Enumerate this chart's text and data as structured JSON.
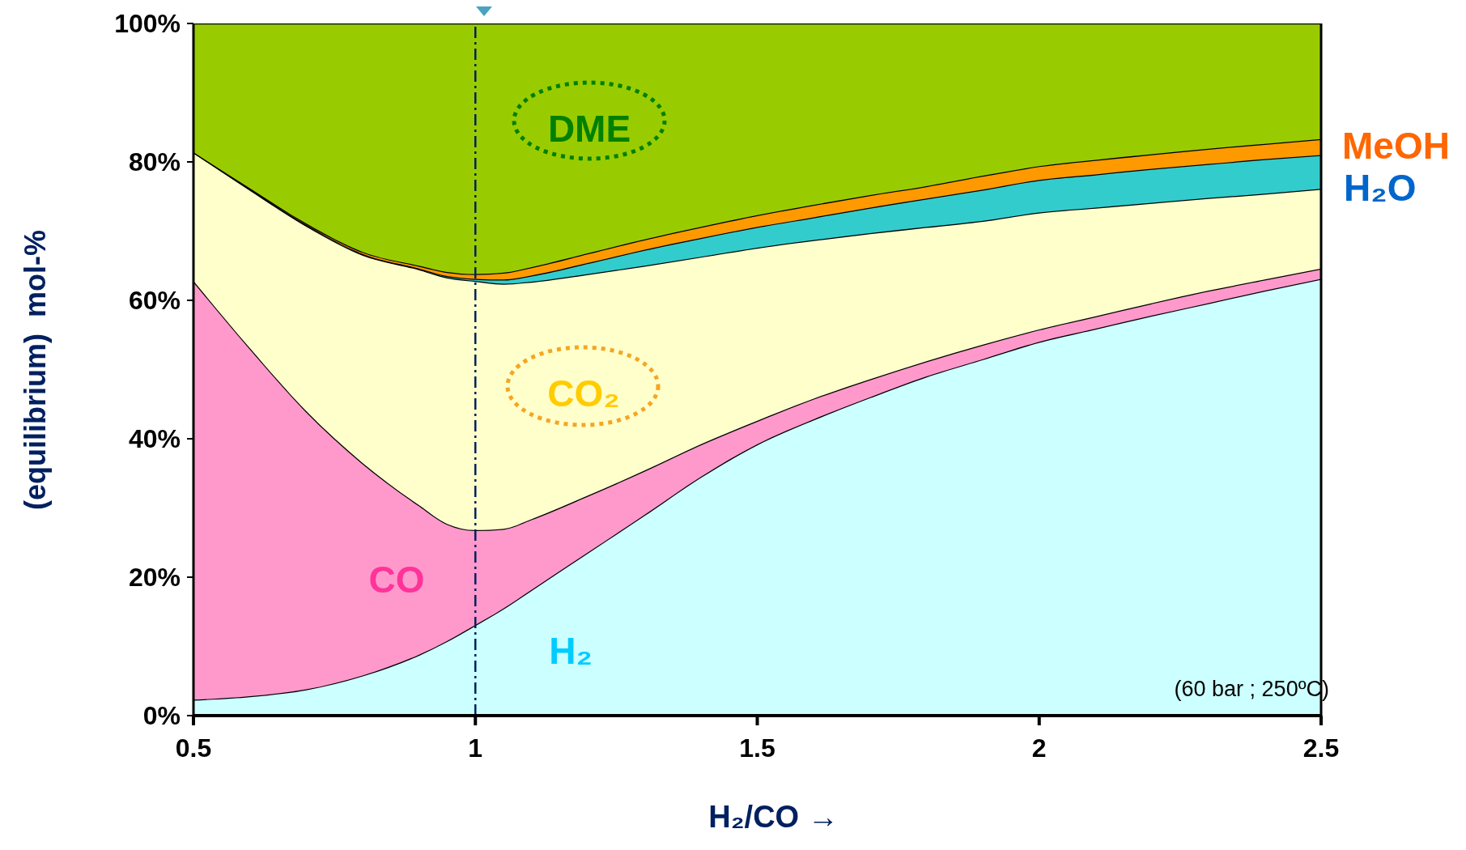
{
  "chart_data": {
    "type": "area",
    "stacked": true,
    "xlabel": "H₂/CO →",
    "ylabel": "(equilibrium)  mol-%",
    "x": [
      0.5,
      0.6,
      0.7,
      0.8,
      0.9,
      0.95,
      1.0,
      1.05,
      1.1,
      1.2,
      1.3,
      1.4,
      1.5,
      1.6,
      1.7,
      1.8,
      1.9,
      2.0,
      2.1,
      2.2,
      2.3,
      2.4,
      2.5
    ],
    "series": [
      {
        "name": "H₂",
        "color": "#ccffff",
        "values": [
          2.3,
          2.8,
          3.8,
          5.8,
          8.8,
          10.8,
          13.1,
          15.5,
          18.2,
          23.6,
          29.0,
          34.5,
          39.2,
          42.8,
          46.0,
          49.0,
          51.5,
          54.0,
          55.9,
          57.8,
          59.6,
          61.4,
          63.1
        ]
      },
      {
        "name": "CO",
        "color": "#ff99cc",
        "values": [
          60.5,
          50.3,
          40.2,
          30.7,
          21.6,
          16.9,
          13.7,
          11.5,
          10.2,
          8.2,
          6.4,
          4.7,
          3.4,
          3.0,
          2.6,
          2.2,
          2.1,
          1.8,
          1.8,
          1.8,
          1.8,
          1.6,
          1.5
        ]
      },
      {
        "name": "CO₂",
        "color": "#ffffcc",
        "values": [
          18.6,
          22.9,
          26.8,
          30.1,
          34.1,
          35.6,
          36.0,
          35.4,
          34.3,
          32.0,
          29.6,
          27.1,
          25.0,
          22.9,
          21.1,
          19.4,
          17.9,
          16.9,
          15.7,
          14.5,
          13.4,
          12.4,
          11.5
        ]
      },
      {
        "name": "H₂O",
        "color": "#33cccc",
        "values": [
          0,
          0.1,
          0.1,
          0.1,
          0.1,
          0.2,
          0.3,
          0.6,
          0.9,
          1.6,
          2.3,
          2.7,
          3.0,
          3.3,
          3.7,
          4.1,
          4.5,
          4.7,
          4.8,
          4.9,
          4.9,
          5.0,
          4.9
        ]
      },
      {
        "name": "MeOH",
        "color": "#ff9900",
        "values": [
          0,
          0.1,
          0.2,
          0.3,
          0.4,
          0.6,
          0.7,
          1.0,
          1.2,
          1.4,
          1.5,
          1.6,
          1.7,
          1.8,
          1.8,
          1.8,
          2.0,
          2.0,
          2.1,
          2.1,
          2.2,
          2.2,
          2.3
        ]
      },
      {
        "name": "DME",
        "color": "#99cc00",
        "values": [
          18.6,
          23.8,
          28.9,
          33.0,
          35.0,
          35.9,
          36.2,
          36.0,
          35.2,
          33.2,
          31.2,
          29.4,
          27.7,
          26.2,
          24.8,
          23.5,
          22.0,
          20.6,
          19.7,
          18.9,
          18.1,
          17.4,
          16.7
        ]
      }
    ],
    "xlim": [
      0.5,
      2.5
    ],
    "xticks": [
      0.5,
      1,
      1.5,
      2,
      2.5
    ],
    "ylim": [
      0,
      100
    ],
    "yticks": [
      {
        "value": 0,
        "label": "0%"
      },
      {
        "value": 20,
        "label": "20%"
      },
      {
        "value": 40,
        "label": "40%"
      },
      {
        "value": 60,
        "label": "60%"
      },
      {
        "value": 80,
        "label": "80%"
      },
      {
        "value": 100,
        "label": "100%"
      }
    ],
    "ref_lines": [
      {
        "axis": "x",
        "value": 1,
        "color": "#002060",
        "line_style": "dashed"
      }
    ],
    "annotations": [
      "(60 bar ; 250ºC)"
    ],
    "grid": false,
    "legend": false
  }
}
